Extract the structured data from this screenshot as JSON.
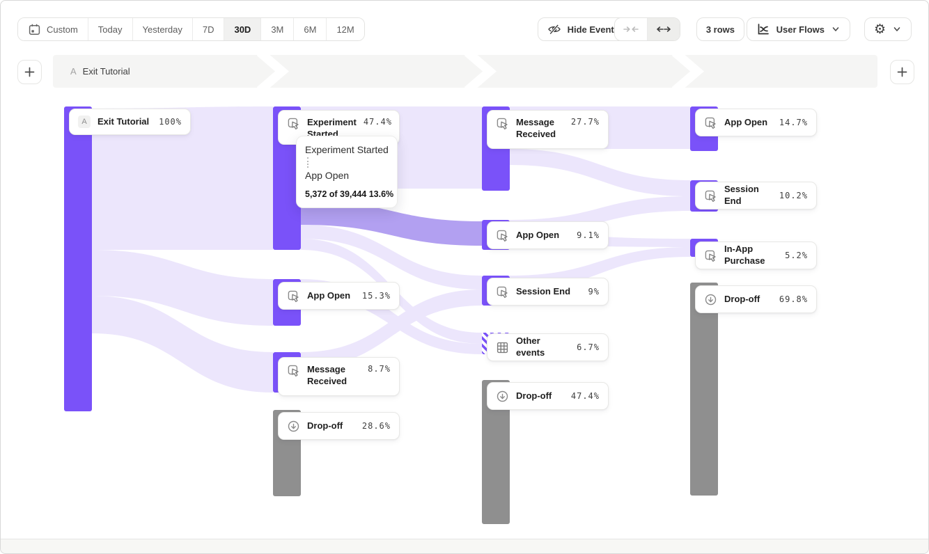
{
  "toolbar": {
    "date_ranges": [
      "Custom",
      "Today",
      "Yesterday",
      "7D",
      "30D",
      "3M",
      "6M",
      "12M"
    ],
    "selected_range": "30D",
    "hide_events": "Hide Events",
    "rows": "3 rows",
    "view": "User Flows"
  },
  "steps": {
    "letter": "A",
    "title": "Exit Tutorial"
  },
  "tooltip": {
    "from": "Experiment Started",
    "to": "App Open",
    "stats": "5,372 of 39,444 13.6%"
  },
  "sankey": {
    "columns": [
      {
        "nodes": [
          {
            "label": "Exit Tutorial",
            "pct": "100%",
            "type": "start",
            "badge": "A"
          }
        ]
      },
      {
        "nodes": [
          {
            "label": "Experiment Started",
            "pct": "47.4%",
            "type": "event"
          },
          {
            "label": "App Open",
            "pct": "15.3%",
            "type": "event"
          },
          {
            "label": "Message Received",
            "pct": "8.7%",
            "type": "event"
          },
          {
            "label": "Drop-off",
            "pct": "28.6%",
            "type": "dropoff"
          }
        ]
      },
      {
        "nodes": [
          {
            "label": "Message Received",
            "pct": "27.7%",
            "type": "event"
          },
          {
            "label": "App Open",
            "pct": "9.1%",
            "type": "event"
          },
          {
            "label": "Session End",
            "pct": "9%",
            "type": "event"
          },
          {
            "label": "Other events",
            "pct": "6.7%",
            "type": "other"
          },
          {
            "label": "Drop-off",
            "pct": "47.4%",
            "type": "dropoff"
          }
        ]
      },
      {
        "nodes": [
          {
            "label": "App Open",
            "pct": "14.7%",
            "type": "event"
          },
          {
            "label": "Session End",
            "pct": "10.2%",
            "type": "event"
          },
          {
            "label": "In-App Purchase",
            "pct": "5.2%",
            "type": "event"
          },
          {
            "label": "Drop-off",
            "pct": "69.8%",
            "type": "dropoff"
          }
        ]
      }
    ]
  },
  "colors": {
    "accent": "#7a52f9",
    "flow_light": "#ece6fc",
    "flow_highlight": "#b2a0f1",
    "dropoff_gray": "#8f8f8f"
  }
}
